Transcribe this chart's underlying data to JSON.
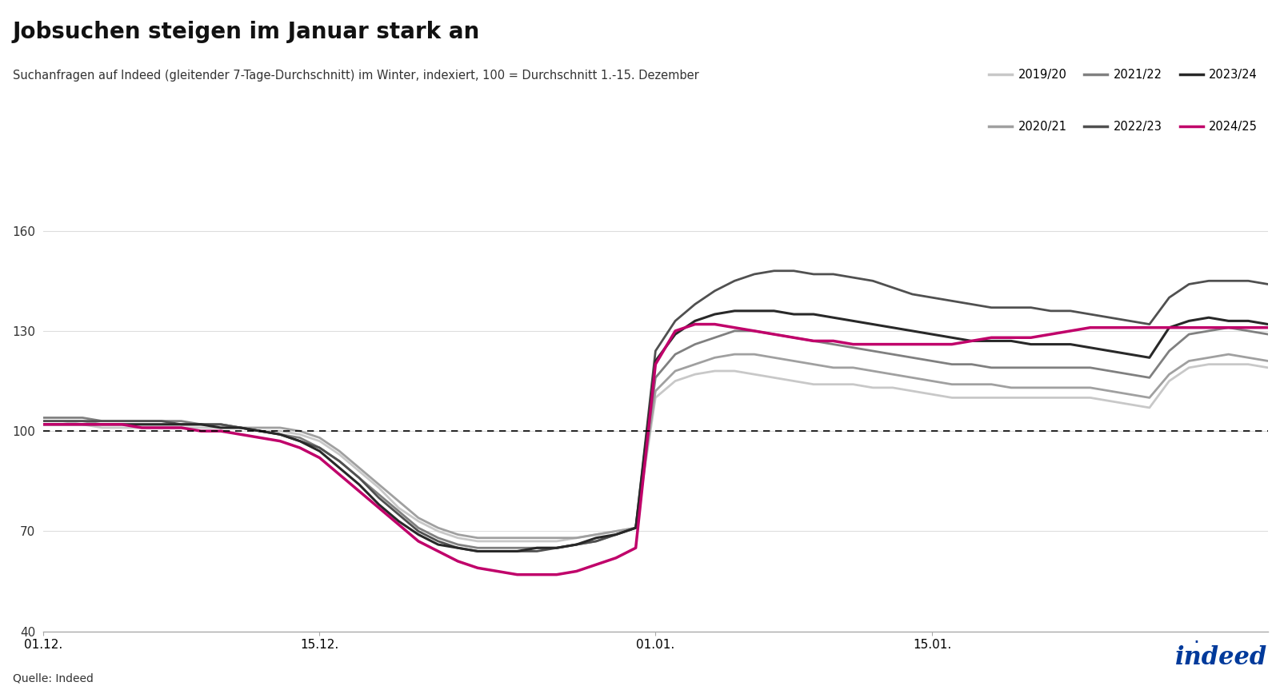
{
  "title": "Jobsuchen steigen im Januar stark an",
  "subtitle": "Suchanfragen auf Indeed (gleitender 7-Tage-Durchschnitt) im Winter, indexiert, 100 = Durchschnitt 1.-15. Dezember",
  "source": "Quelle: Indeed",
  "ylim": [
    40,
    170
  ],
  "yticks": [
    40,
    70,
    100,
    130,
    160
  ],
  "xlabel_ticks": [
    "01.12.",
    "15.12.",
    "01.01.",
    "15.01."
  ],
  "series": {
    "2019/20": {
      "color": "#c8c8c8",
      "lw": 2.0,
      "zorder": 1,
      "values": [
        103,
        103,
        102,
        101,
        101,
        101,
        101,
        101,
        101,
        101,
        101,
        100,
        100,
        99,
        97,
        93,
        88,
        83,
        77,
        73,
        70,
        68,
        67,
        67,
        67,
        67,
        67,
        68,
        69,
        70,
        71,
        110,
        115,
        117,
        118,
        118,
        117,
        116,
        115,
        114,
        114,
        114,
        113,
        113,
        112,
        111,
        110,
        110,
        110,
        110,
        110,
        110,
        110,
        110,
        109,
        108,
        107,
        115,
        119,
        120,
        120,
        120,
        119
      ]
    },
    "2020/21": {
      "color": "#a0a0a0",
      "lw": 2.0,
      "zorder": 2,
      "values": [
        103,
        103,
        103,
        102,
        102,
        102,
        102,
        102,
        102,
        102,
        101,
        101,
        101,
        100,
        98,
        94,
        89,
        84,
        79,
        74,
        71,
        69,
        68,
        68,
        68,
        68,
        68,
        68,
        69,
        70,
        71,
        112,
        118,
        120,
        122,
        123,
        123,
        122,
        121,
        120,
        119,
        119,
        118,
        117,
        116,
        115,
        114,
        114,
        114,
        113,
        113,
        113,
        113,
        113,
        112,
        111,
        110,
        117,
        121,
        122,
        123,
        122,
        121
      ]
    },
    "2021/22": {
      "color": "#808080",
      "lw": 2.0,
      "zorder": 3,
      "values": [
        104,
        104,
        104,
        103,
        103,
        103,
        103,
        103,
        102,
        102,
        101,
        100,
        99,
        98,
        95,
        91,
        86,
        81,
        76,
        71,
        68,
        66,
        65,
        65,
        65,
        65,
        65,
        66,
        67,
        69,
        71,
        116,
        123,
        126,
        128,
        130,
        130,
        129,
        128,
        127,
        126,
        125,
        124,
        123,
        122,
        121,
        120,
        120,
        119,
        119,
        119,
        119,
        119,
        119,
        118,
        117,
        116,
        124,
        129,
        130,
        131,
        130,
        129
      ]
    },
    "2022/23": {
      "color": "#505050",
      "lw": 2.0,
      "zorder": 4,
      "values": [
        103,
        103,
        103,
        103,
        103,
        103,
        103,
        102,
        102,
        102,
        101,
        100,
        99,
        97,
        95,
        91,
        86,
        80,
        75,
        70,
        67,
        65,
        64,
        64,
        64,
        64,
        65,
        66,
        67,
        69,
        71,
        124,
        133,
        138,
        142,
        145,
        147,
        148,
        148,
        147,
        147,
        146,
        145,
        143,
        141,
        140,
        139,
        138,
        137,
        137,
        137,
        136,
        136,
        135,
        134,
        133,
        132,
        140,
        144,
        145,
        145,
        145,
        144
      ]
    },
    "2023/24": {
      "color": "#282828",
      "lw": 2.2,
      "zorder": 5,
      "values": [
        102,
        102,
        102,
        102,
        102,
        102,
        102,
        102,
        102,
        101,
        101,
        100,
        99,
        97,
        94,
        89,
        84,
        78,
        73,
        69,
        66,
        65,
        64,
        64,
        64,
        65,
        65,
        66,
        68,
        69,
        71,
        121,
        129,
        133,
        135,
        136,
        136,
        136,
        135,
        135,
        134,
        133,
        132,
        131,
        130,
        129,
        128,
        127,
        127,
        127,
        126,
        126,
        126,
        125,
        124,
        123,
        122,
        131,
        133,
        134,
        133,
        133,
        132
      ]
    },
    "2024/25": {
      "color": "#c0006a",
      "lw": 2.5,
      "zorder": 6,
      "values": [
        102,
        102,
        102,
        102,
        102,
        101,
        101,
        101,
        100,
        100,
        99,
        98,
        97,
        95,
        92,
        87,
        82,
        77,
        72,
        67,
        64,
        61,
        59,
        58,
        57,
        57,
        57,
        58,
        60,
        62,
        65,
        120,
        130,
        132,
        132,
        131,
        130,
        129,
        128,
        127,
        127,
        126,
        126,
        126,
        126,
        126,
        126,
        127,
        128,
        128,
        128,
        129,
        130,
        131,
        131,
        131,
        131,
        131,
        131,
        131,
        131,
        131,
        131
      ]
    }
  },
  "legend_order": [
    "2019/20",
    "2020/21",
    "2021/22",
    "2022/23",
    "2023/24",
    "2024/25"
  ],
  "background_color": "#ffffff"
}
